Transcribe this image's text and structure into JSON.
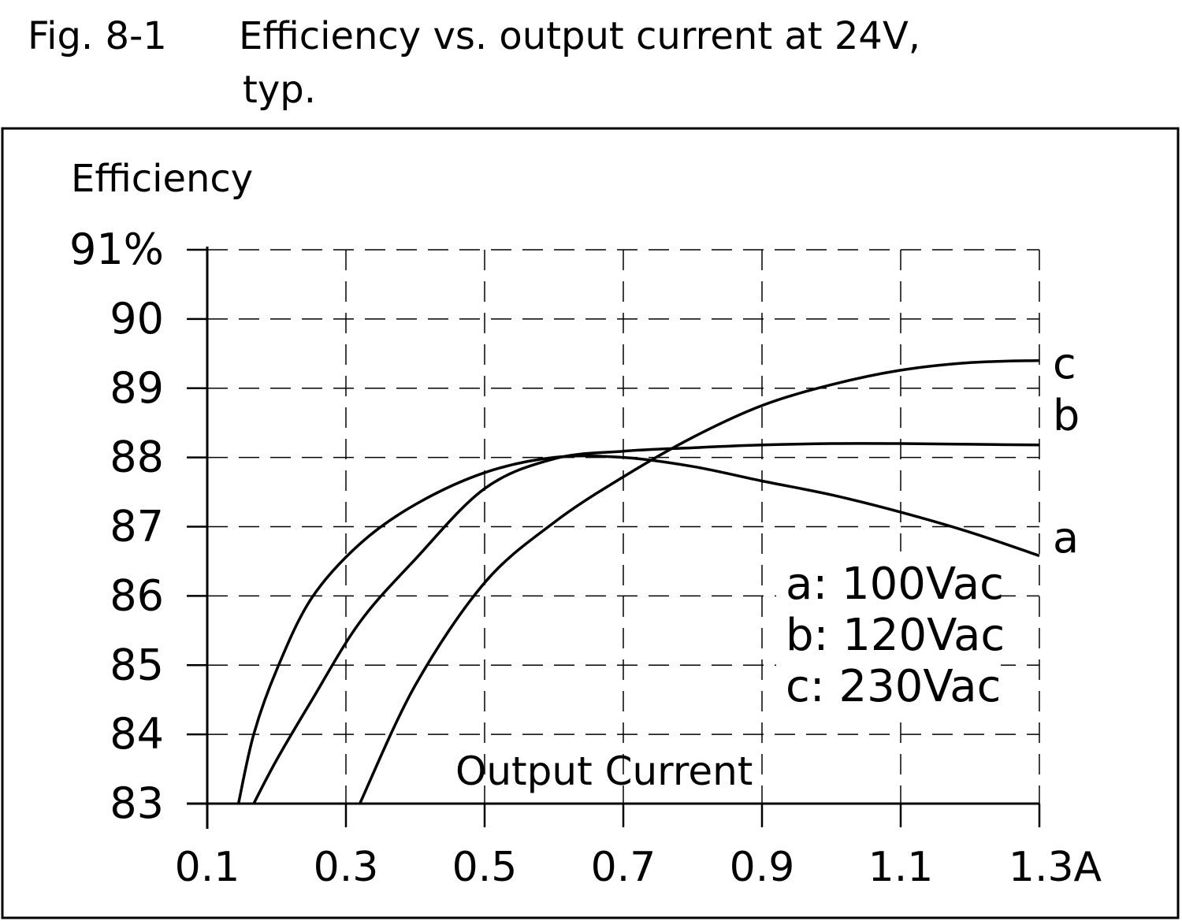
{
  "chart_data": {
    "type": "line",
    "figure_label": "Fig. 8-1",
    "title": [
      "Efficiency vs. output current at 24V,",
      "typ."
    ],
    "y_label": "Efficiency",
    "x_label": "Output Current",
    "x": [
      0.145,
      0.167,
      0.2,
      0.25,
      0.32,
      0.4,
      0.5,
      0.6,
      0.7,
      0.8,
      0.9,
      1.0,
      1.1,
      1.2,
      1.3
    ],
    "series": [
      {
        "name": "a: 100Vac",
        "label": "a",
        "color": "#000000",
        "values": [
          83.0,
          84.0,
          84.93,
          85.96,
          86.75,
          87.32,
          87.78,
          88.0,
          88.0,
          87.87,
          87.66,
          87.46,
          87.21,
          86.92,
          86.58
        ]
      },
      {
        "name": "b: 120Vac",
        "label": "b",
        "color": "#000000",
        "values": [
          null,
          83.0,
          83.63,
          84.48,
          85.62,
          86.53,
          87.55,
          87.98,
          88.09,
          88.14,
          88.18,
          88.2,
          88.2,
          88.19,
          88.18
        ]
      },
      {
        "name": "c: 230Vac",
        "label": "c",
        "color": "#000000",
        "values": [
          null,
          null,
          null,
          null,
          83.0,
          84.71,
          86.19,
          87.06,
          87.72,
          88.29,
          88.75,
          89.05,
          89.26,
          89.37,
          89.4
        ]
      }
    ],
    "xlim": [
      0.1,
      1.3
    ],
    "xticks": [
      0.1,
      0.3,
      0.5,
      0.7,
      0.9,
      1.1,
      {
        "value": 1.3,
        "label": "1.3A"
      }
    ],
    "ylim": [
      83,
      91
    ],
    "yticks": [
      83,
      84,
      85,
      86,
      87,
      88,
      89,
      90,
      {
        "value": 91,
        "label": "91%"
      }
    ],
    "grid": true
  }
}
